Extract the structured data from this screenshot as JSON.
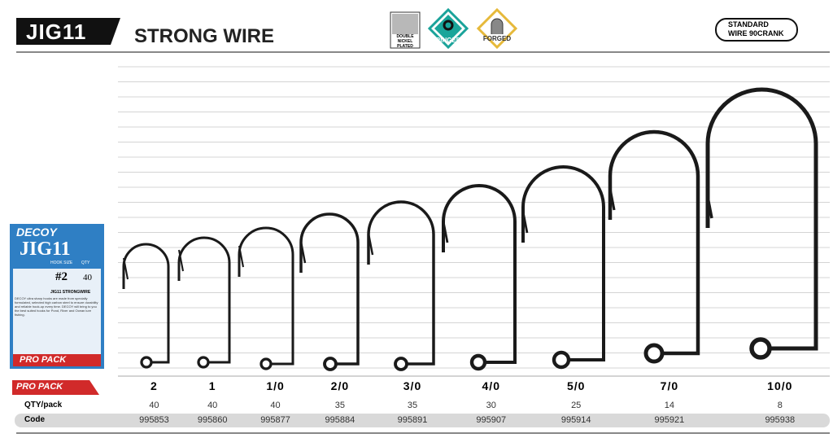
{
  "header": {
    "model": "JIG11",
    "title": "STRONG WIRE",
    "badges": [
      "DOUBLE NICKEL PLATED",
      "RINGED",
      "FORGED"
    ],
    "wire": "STANDARD WIRE 90CRANK"
  },
  "package": {
    "brand": "DECOY",
    "model": "JIG11",
    "size_label": "HOOK SIZE",
    "qty_label": "QTY",
    "size": "#2",
    "qty": 40,
    "name": "JIG11 STRONGWIRE",
    "description": "DECOY ultra sharp hooks are made from specially formulated, selected high carbon steel to ensure durability and reliable hook-up every time. DECOY will bring to you the best suited hooks for Pond, River and Ocean lure fishing.",
    "pack": "PRO PACK"
  },
  "pro_pack": "PRO PACK",
  "table": {
    "sizes": [
      "2",
      "1",
      "1/0",
      "2/0",
      "3/0",
      "4/0",
      "5/0",
      "7/0",
      "10/0"
    ],
    "rows": [
      {
        "label": "QTY/pack",
        "values": [
          40,
          40,
          40,
          35,
          35,
          30,
          25,
          14,
          8
        ]
      },
      {
        "label": "Code",
        "values": [
          995853,
          995860,
          995877,
          995884,
          995891,
          995907,
          995914,
          995921,
          995938
        ]
      }
    ]
  }
}
